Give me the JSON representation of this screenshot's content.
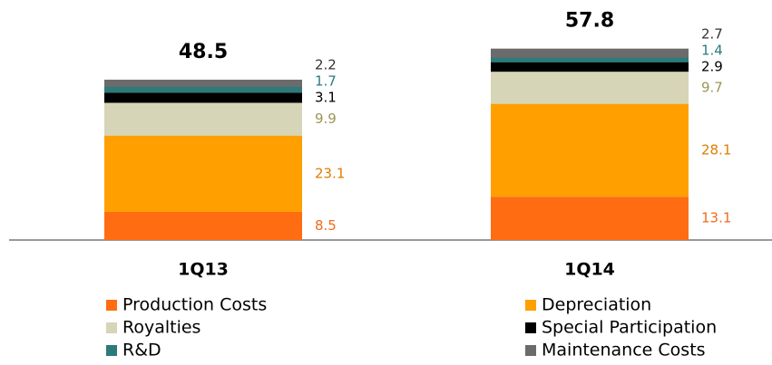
{
  "chart_data": {
    "type": "stacked_bar",
    "categories": [
      "1Q13",
      "1Q14"
    ],
    "totals": [
      48.5,
      57.8
    ],
    "series": [
      {
        "name": "Production Costs",
        "color": "#ff6c12",
        "label_color": "#f26a1b",
        "values": [
          8.5,
          13.1
        ]
      },
      {
        "name": "Depreciation",
        "color": "#ff9f00",
        "label_color": "#e07c00",
        "values": [
          23.1,
          28.1
        ]
      },
      {
        "name": "Royalties",
        "color": "#d7d5b8",
        "label_color": "#9a9656",
        "values": [
          9.9,
          9.7
        ]
      },
      {
        "name": "Special Participation",
        "color": "#000000",
        "label_color": "#000000",
        "values": [
          3.1,
          2.9
        ]
      },
      {
        "name": "R&D",
        "color": "#2b7b7b",
        "label_color": "#2b7b7b",
        "values": [
          1.7,
          1.4
        ]
      },
      {
        "name": "Maintenance Costs",
        "color": "#6b6b6b",
        "label_color": "#333333",
        "values": [
          2.2,
          2.7
        ]
      }
    ]
  }
}
